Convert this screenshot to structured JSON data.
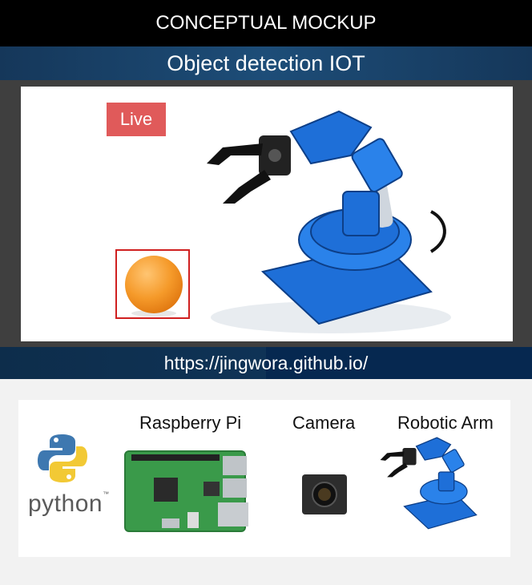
{
  "header": {
    "banner": "CONCEPTUAL MOCKUP",
    "title": "Object detection IOT"
  },
  "viewer": {
    "live_label": "Live"
  },
  "footer": {
    "url": "https://jingwora.github.io/"
  },
  "components": {
    "python_label": "python",
    "python_tm": "™",
    "raspberry_label": "Raspberry Pi",
    "camera_label": "Camera",
    "arm_label": "Robotic Arm"
  },
  "colors": {
    "live_badge": "#e05a5a",
    "detection_box": "#d02020",
    "title_bar": "#1d4d78",
    "arm_blue": "#1e6fd8",
    "ball": "#f59a2a"
  }
}
